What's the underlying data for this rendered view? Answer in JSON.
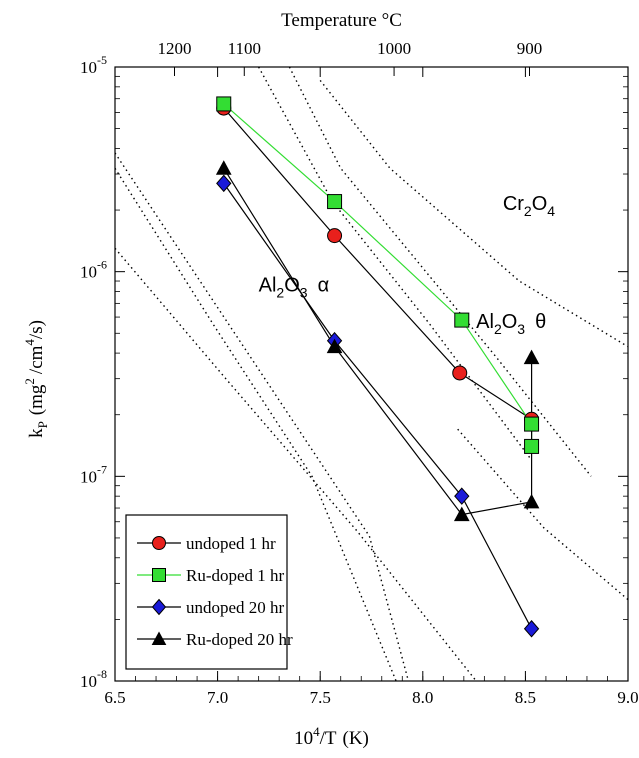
{
  "chart_data": {
    "type": "scatter",
    "title": "",
    "top_axis": {
      "label": "Temperature °C",
      "ticks": [
        {
          "label": "1200",
          "x": 6.79
        },
        {
          "label": "1100",
          "x": 7.13
        },
        {
          "label": "1000",
          "x": 7.86
        },
        {
          "label": "900",
          "x": 8.52
        }
      ]
    },
    "xlabel": {
      "pre": "10",
      "sup": "4",
      "post": "/T",
      "unit": "(K)"
    },
    "ylabel": {
      "pre": "k",
      "sub": "P",
      "post": "(mg",
      "sup1": "2",
      "mid": "/cm",
      "sup2": "4",
      "end": "/s)"
    },
    "xlim": [
      6.5,
      9.0
    ],
    "xticks": [
      "6.5",
      "7.0",
      "7.5",
      "8.0",
      "8.5",
      "9.0"
    ],
    "yscale": "log",
    "ylim": [
      1e-08,
      1e-05
    ],
    "yticks": [
      {
        "base": "10",
        "exp": "-8"
      },
      {
        "base": "10",
        "exp": "-7"
      },
      {
        "base": "10",
        "exp": "-6"
      },
      {
        "base": "10",
        "exp": "-5"
      }
    ],
    "series": [
      {
        "name": "undoped 1 hr",
        "marker": "circle",
        "color": "#e8201c",
        "line_color": "#000000",
        "points": [
          [
            7.03,
            6.3e-06
          ],
          [
            7.57,
            1.5e-06
          ],
          [
            8.18,
            3.2e-07
          ],
          [
            8.53,
            1.9e-07
          ]
        ]
      },
      {
        "name": "Ru-doped 1 hr",
        "marker": "square",
        "color": "#33dd33",
        "line_color": "#33dd33",
        "points": [
          [
            7.03,
            6.6e-06
          ],
          [
            7.57,
            2.2e-06
          ],
          [
            8.19,
            5.8e-07
          ],
          [
            8.53,
            1.8e-07
          ],
          [
            8.53,
            1.4e-07
          ]
        ]
      },
      {
        "name": "undoped 20 hr",
        "marker": "diamond",
        "color": "#1a1ad8",
        "line_color": "#000000",
        "points": [
          [
            7.03,
            2.7e-06
          ],
          [
            7.57,
            4.6e-07
          ],
          [
            8.19,
            8e-08
          ],
          [
            8.53,
            1.8e-08
          ]
        ]
      },
      {
        "name": "Ru-doped 20 hr",
        "marker": "triangle",
        "color": "#000000",
        "line_color": "#000000",
        "points": [
          [
            7.03,
            3.2e-06
          ],
          [
            7.57,
            4.3e-07
          ],
          [
            8.19,
            6.5e-08
          ],
          [
            8.53,
            7.5e-08
          ],
          [
            8.53,
            3.8e-07
          ]
        ]
      }
    ],
    "reference_lines": [
      [
        [
          6.5,
          3.8e-06
        ],
        [
          7.12,
          4.4e-07
        ],
        [
          7.74,
          5.1e-08
        ],
        [
          7.93,
          1e-08
        ]
      ],
      [
        [
          6.5,
          3.2e-06
        ],
        [
          6.98,
          5.5e-07
        ],
        [
          7.46,
          1e-07
        ],
        [
          7.87,
          1e-08
        ]
      ],
      [
        [
          6.5,
          1.3e-06
        ],
        [
          7.04,
          3e-07
        ],
        [
          7.68,
          5.4e-08
        ],
        [
          8.26,
          1e-08
        ]
      ],
      [
        [
          7.2,
          1e-05
        ],
        [
          7.56,
          2.2e-06
        ],
        [
          8.03,
          5.6e-07
        ],
        [
          8.53,
          1.2e-07
        ]
      ],
      [
        [
          7.35,
          1e-05
        ],
        [
          7.6,
          3.2e-06
        ],
        [
          8.36,
          3.8e-07
        ],
        [
          8.82,
          1e-07
        ]
      ],
      [
        [
          7.5,
          8.6e-06
        ],
        [
          7.84,
          3.2e-06
        ],
        [
          8.47,
          9e-07
        ],
        [
          9.0,
          4.3e-07
        ]
      ],
      [
        [
          8.17,
          1.7e-07
        ],
        [
          8.59,
          5.6e-08
        ],
        [
          9.0,
          2.5e-08
        ]
      ]
    ],
    "annotations": [
      {
        "base": "Al",
        "sub1": "2",
        "mid": "O",
        "sub2": "3",
        "tail": "α",
        "x": 7.2,
        "y": 8e-07
      },
      {
        "base": "Al",
        "sub1": "2",
        "mid": "O",
        "sub2": "3",
        "tail": "θ",
        "x": 8.26,
        "y": 5.3e-07
      },
      {
        "base": "Cr",
        "sub1": "2",
        "mid": "O",
        "sub2": "4",
        "tail": "",
        "x": 8.39,
        "y": 2e-06
      }
    ],
    "legend_position": "bottom-left",
    "grid": false
  }
}
